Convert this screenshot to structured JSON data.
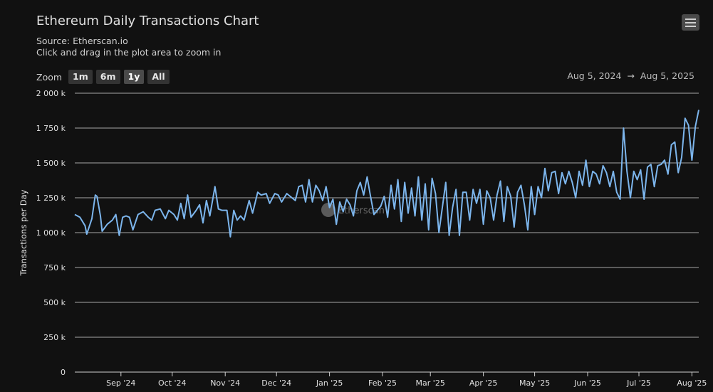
{
  "header": {
    "title": "Ethereum Daily Transactions Chart",
    "source": "Source: Etherscan.io",
    "hint": "Click and drag in the plot area to zoom in"
  },
  "toolbar": {
    "zoom_label": "Zoom",
    "buttons": [
      {
        "label": "1m",
        "active": false
      },
      {
        "label": "6m",
        "active": false
      },
      {
        "label": "1y",
        "active": true
      },
      {
        "label": "All",
        "active": false
      }
    ],
    "menu_icon": "hamburger-menu-icon"
  },
  "range": {
    "from": "Aug 5, 2024",
    "arrow": "→",
    "to": "Aug 5, 2025"
  },
  "watermark": "Etherscan",
  "colors": {
    "background": "#111111",
    "line": "#7cb5ec",
    "grid": "#d9d9d9",
    "text": "#e0e0e0"
  },
  "chart_data": {
    "type": "line",
    "title": "Ethereum Daily Transactions Chart",
    "ylabel": "Transactions per Day",
    "ylim": [
      0,
      2000000
    ],
    "yticks": [
      {
        "value": 0,
        "label": "0"
      },
      {
        "value": 250000,
        "label": "250 k"
      },
      {
        "value": 500000,
        "label": "500 k"
      },
      {
        "value": 750000,
        "label": "750 k"
      },
      {
        "value": 1000000,
        "label": "1 000 k"
      },
      {
        "value": 1250000,
        "label": "1 250 k"
      },
      {
        "value": 1500000,
        "label": "1 500 k"
      },
      {
        "value": 1750000,
        "label": "1 750 k"
      },
      {
        "value": 2000000,
        "label": "2 000 k"
      }
    ],
    "xlim": [
      "2024-08-05",
      "2025-08-05"
    ],
    "xticks": [
      {
        "date": "2024-09-01",
        "label": "Sep '24"
      },
      {
        "date": "2024-10-01",
        "label": "Oct '24"
      },
      {
        "date": "2024-11-01",
        "label": "Nov '24"
      },
      {
        "date": "2024-12-01",
        "label": "Dec '24"
      },
      {
        "date": "2025-01-01",
        "label": "Jan '25"
      },
      {
        "date": "2025-02-01",
        "label": "Feb '25"
      },
      {
        "date": "2025-03-01",
        "label": "Mar '25"
      },
      {
        "date": "2025-04-01",
        "label": "Apr '25"
      },
      {
        "date": "2025-05-01",
        "label": "May '25"
      },
      {
        "date": "2025-06-01",
        "label": "Jun '25"
      },
      {
        "date": "2025-07-01",
        "label": "Jul '25"
      },
      {
        "date": "2025-08-01",
        "label": "Aug '25"
      }
    ],
    "series": [
      {
        "name": "Transactions per Day",
        "points": [
          [
            "2024-08-05",
            1130000
          ],
          [
            "2024-08-08",
            1110000
          ],
          [
            "2024-08-11",
            1050000
          ],
          [
            "2024-08-12",
            990000
          ],
          [
            "2024-08-15",
            1100000
          ],
          [
            "2024-08-17",
            1270000
          ],
          [
            "2024-08-18",
            1260000
          ],
          [
            "2024-08-20",
            1120000
          ],
          [
            "2024-08-21",
            1010000
          ],
          [
            "2024-08-24",
            1060000
          ],
          [
            "2024-08-27",
            1090000
          ],
          [
            "2024-08-29",
            1130000
          ],
          [
            "2024-08-31",
            980000
          ],
          [
            "2024-09-02",
            1110000
          ],
          [
            "2024-09-04",
            1120000
          ],
          [
            "2024-09-06",
            1110000
          ],
          [
            "2024-09-08",
            1020000
          ],
          [
            "2024-09-11",
            1130000
          ],
          [
            "2024-09-14",
            1150000
          ],
          [
            "2024-09-17",
            1110000
          ],
          [
            "2024-09-19",
            1090000
          ],
          [
            "2024-09-21",
            1160000
          ],
          [
            "2024-09-24",
            1170000
          ],
          [
            "2024-09-27",
            1100000
          ],
          [
            "2024-09-29",
            1160000
          ],
          [
            "2024-10-02",
            1130000
          ],
          [
            "2024-10-04",
            1090000
          ],
          [
            "2024-10-06",
            1210000
          ],
          [
            "2024-10-08",
            1100000
          ],
          [
            "2024-10-10",
            1270000
          ],
          [
            "2024-10-12",
            1110000
          ],
          [
            "2024-10-15",
            1160000
          ],
          [
            "2024-10-17",
            1200000
          ],
          [
            "2024-10-19",
            1070000
          ],
          [
            "2024-10-21",
            1230000
          ],
          [
            "2024-10-23",
            1120000
          ],
          [
            "2024-10-26",
            1330000
          ],
          [
            "2024-10-28",
            1170000
          ],
          [
            "2024-10-30",
            1160000
          ],
          [
            "2024-11-02",
            1160000
          ],
          [
            "2024-11-04",
            970000
          ],
          [
            "2024-11-06",
            1160000
          ],
          [
            "2024-11-08",
            1090000
          ],
          [
            "2024-11-10",
            1120000
          ],
          [
            "2024-11-12",
            1090000
          ],
          [
            "2024-11-15",
            1230000
          ],
          [
            "2024-11-17",
            1140000
          ],
          [
            "2024-11-20",
            1290000
          ],
          [
            "2024-11-22",
            1270000
          ],
          [
            "2024-11-25",
            1280000
          ],
          [
            "2024-11-27",
            1210000
          ],
          [
            "2024-11-30",
            1280000
          ],
          [
            "2024-12-02",
            1270000
          ],
          [
            "2024-12-04",
            1220000
          ],
          [
            "2024-12-07",
            1280000
          ],
          [
            "2024-12-09",
            1260000
          ],
          [
            "2024-12-12",
            1230000
          ],
          [
            "2024-12-14",
            1330000
          ],
          [
            "2024-12-16",
            1340000
          ],
          [
            "2024-12-18",
            1220000
          ],
          [
            "2024-12-20",
            1380000
          ],
          [
            "2024-12-22",
            1220000
          ],
          [
            "2024-12-24",
            1340000
          ],
          [
            "2024-12-26",
            1300000
          ],
          [
            "2024-12-28",
            1230000
          ],
          [
            "2024-12-30",
            1330000
          ],
          [
            "2025-01-01",
            1180000
          ],
          [
            "2025-01-03",
            1240000
          ],
          [
            "2025-01-05",
            1060000
          ],
          [
            "2025-01-07",
            1220000
          ],
          [
            "2025-01-09",
            1150000
          ],
          [
            "2025-01-11",
            1240000
          ],
          [
            "2025-01-13",
            1200000
          ],
          [
            "2025-01-15",
            1120000
          ],
          [
            "2025-01-17",
            1300000
          ],
          [
            "2025-01-19",
            1360000
          ],
          [
            "2025-01-21",
            1270000
          ],
          [
            "2025-01-23",
            1400000
          ],
          [
            "2025-01-25",
            1260000
          ],
          [
            "2025-01-27",
            1130000
          ],
          [
            "2025-01-29",
            1160000
          ],
          [
            "2025-01-31",
            1190000
          ],
          [
            "2025-02-02",
            1260000
          ],
          [
            "2025-02-04",
            1110000
          ],
          [
            "2025-02-06",
            1340000
          ],
          [
            "2025-02-08",
            1170000
          ],
          [
            "2025-02-10",
            1380000
          ],
          [
            "2025-02-12",
            1080000
          ],
          [
            "2025-02-14",
            1360000
          ],
          [
            "2025-02-16",
            1140000
          ],
          [
            "2025-02-18",
            1320000
          ],
          [
            "2025-02-20",
            1120000
          ],
          [
            "2025-02-22",
            1400000
          ],
          [
            "2025-02-24",
            1090000
          ],
          [
            "2025-02-26",
            1350000
          ],
          [
            "2025-02-28",
            1020000
          ],
          [
            "2025-03-02",
            1390000
          ],
          [
            "2025-03-04",
            1280000
          ],
          [
            "2025-03-06",
            1000000
          ],
          [
            "2025-03-08",
            1180000
          ],
          [
            "2025-03-10",
            1360000
          ],
          [
            "2025-03-12",
            980000
          ],
          [
            "2025-03-14",
            1180000
          ],
          [
            "2025-03-16",
            1310000
          ],
          [
            "2025-03-18",
            980000
          ],
          [
            "2025-03-20",
            1290000
          ],
          [
            "2025-03-22",
            1290000
          ],
          [
            "2025-03-24",
            1090000
          ],
          [
            "2025-03-26",
            1310000
          ],
          [
            "2025-03-28",
            1210000
          ],
          [
            "2025-03-30",
            1310000
          ],
          [
            "2025-04-01",
            1060000
          ],
          [
            "2025-04-03",
            1300000
          ],
          [
            "2025-04-05",
            1250000
          ],
          [
            "2025-04-07",
            1090000
          ],
          [
            "2025-04-09",
            1270000
          ],
          [
            "2025-04-11",
            1370000
          ],
          [
            "2025-04-13",
            1080000
          ],
          [
            "2025-04-15",
            1330000
          ],
          [
            "2025-04-17",
            1260000
          ],
          [
            "2025-04-19",
            1040000
          ],
          [
            "2025-04-21",
            1290000
          ],
          [
            "2025-04-23",
            1340000
          ],
          [
            "2025-04-25",
            1200000
          ],
          [
            "2025-04-27",
            1020000
          ],
          [
            "2025-04-29",
            1330000
          ],
          [
            "2025-05-01",
            1130000
          ],
          [
            "2025-05-03",
            1330000
          ],
          [
            "2025-05-05",
            1250000
          ],
          [
            "2025-05-07",
            1460000
          ],
          [
            "2025-05-09",
            1300000
          ],
          [
            "2025-05-11",
            1430000
          ],
          [
            "2025-05-13",
            1440000
          ],
          [
            "2025-05-15",
            1280000
          ],
          [
            "2025-05-17",
            1430000
          ],
          [
            "2025-05-19",
            1350000
          ],
          [
            "2025-05-21",
            1440000
          ],
          [
            "2025-05-23",
            1360000
          ],
          [
            "2025-05-25",
            1250000
          ],
          [
            "2025-05-27",
            1440000
          ],
          [
            "2025-05-29",
            1340000
          ],
          [
            "2025-05-31",
            1520000
          ],
          [
            "2025-06-02",
            1330000
          ],
          [
            "2025-06-04",
            1440000
          ],
          [
            "2025-06-06",
            1420000
          ],
          [
            "2025-06-08",
            1350000
          ],
          [
            "2025-06-10",
            1480000
          ],
          [
            "2025-06-12",
            1430000
          ],
          [
            "2025-06-14",
            1330000
          ],
          [
            "2025-06-16",
            1440000
          ],
          [
            "2025-06-18",
            1290000
          ],
          [
            "2025-06-20",
            1240000
          ],
          [
            "2025-06-22",
            1750000
          ],
          [
            "2025-06-24",
            1440000
          ],
          [
            "2025-06-26",
            1250000
          ],
          [
            "2025-06-28",
            1440000
          ],
          [
            "2025-06-30",
            1380000
          ],
          [
            "2025-07-02",
            1450000
          ],
          [
            "2025-07-04",
            1240000
          ],
          [
            "2025-07-06",
            1470000
          ],
          [
            "2025-07-08",
            1490000
          ],
          [
            "2025-07-10",
            1330000
          ],
          [
            "2025-07-12",
            1480000
          ],
          [
            "2025-07-14",
            1490000
          ],
          [
            "2025-07-16",
            1520000
          ],
          [
            "2025-07-18",
            1420000
          ],
          [
            "2025-07-20",
            1630000
          ],
          [
            "2025-07-22",
            1650000
          ],
          [
            "2025-07-24",
            1430000
          ],
          [
            "2025-07-26",
            1540000
          ],
          [
            "2025-07-28",
            1820000
          ],
          [
            "2025-07-30",
            1770000
          ],
          [
            "2025-08-01",
            1520000
          ],
          [
            "2025-08-03",
            1760000
          ],
          [
            "2025-08-05",
            1880000
          ]
        ]
      }
    ],
    "legend": "none",
    "grid": true
  }
}
